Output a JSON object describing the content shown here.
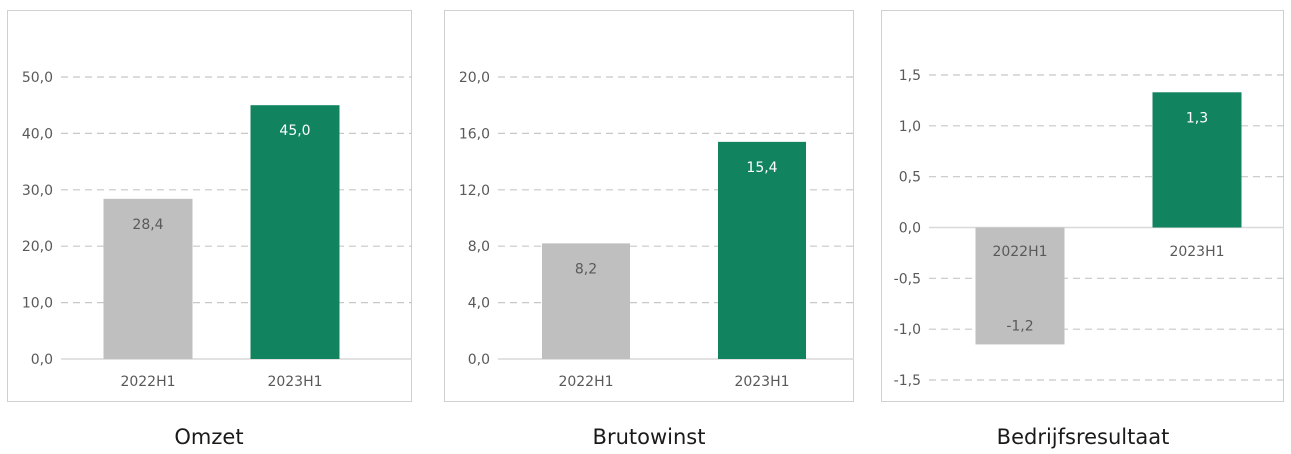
{
  "colors": {
    "gray": "#bfbfbf",
    "green": "#11845f",
    "grid": "#c8c8c8",
    "axis": "#d9d9d9",
    "panel_border": "#d0d0d0"
  },
  "chart_data": [
    {
      "type": "bar",
      "title": "Omzet",
      "categories": [
        "2022H1",
        "2023H1"
      ],
      "values": [
        28.4,
        45.0
      ],
      "value_labels": [
        "28,4",
        "45,0"
      ],
      "bar_colors": [
        "gray",
        "green"
      ],
      "ylim": [
        0,
        50
      ],
      "yticks": [
        0,
        10,
        20,
        30,
        40,
        50
      ],
      "ytick_labels": [
        "0,0",
        "10,0",
        "20,0",
        "30,0",
        "40,0",
        "50,0"
      ],
      "grid": true
    },
    {
      "type": "bar",
      "title": "Brutowinst",
      "categories": [
        "2022H1",
        "2023H1"
      ],
      "values": [
        8.2,
        15.4
      ],
      "value_labels": [
        "8,2",
        "15,4"
      ],
      "bar_colors": [
        "gray",
        "green"
      ],
      "ylim": [
        0,
        20
      ],
      "yticks": [
        0,
        4,
        8,
        12,
        16,
        20
      ],
      "ytick_labels": [
        "0,0",
        "4,0",
        "8,0",
        "12,0",
        "16,0",
        "20,0"
      ],
      "grid": true
    },
    {
      "type": "bar",
      "title": "Bedrijfsresultaat",
      "categories": [
        "2022H1",
        "2023H1"
      ],
      "values": [
        -1.15,
        1.33
      ],
      "value_labels": [
        "-1,2",
        "1,3"
      ],
      "bar_colors": [
        "gray",
        "green"
      ],
      "ylim": [
        -1.5,
        1.5
      ],
      "yticks": [
        -1.5,
        -1.0,
        -0.5,
        0,
        0.5,
        1.0,
        1.5
      ],
      "ytick_labels": [
        "-1,5",
        "-1,0",
        "-0,5",
        "0,0",
        "0,5",
        "1,0",
        "1,5"
      ],
      "grid": true
    }
  ]
}
